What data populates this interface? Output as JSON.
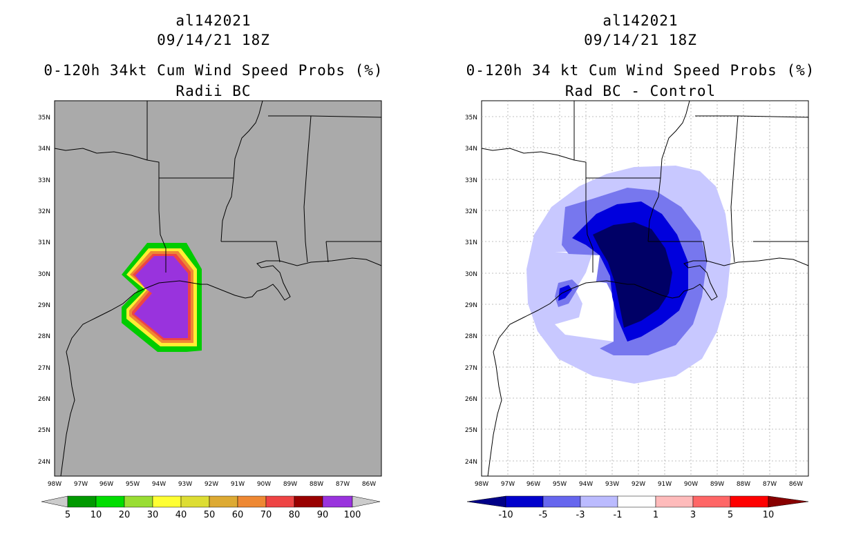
{
  "left_panel": {
    "storm_id": "al142021",
    "datetime": "09/14/21 18Z",
    "title": "0-120h 34kt Cum Wind Speed Probs (%)",
    "subtitle": "Radii BC",
    "background_color": "#aaaaaa",
    "lat_labels": [
      "35N",
      "34N",
      "33N",
      "32N",
      "31N",
      "30N",
      "29N",
      "28N",
      "27N",
      "26N",
      "25N",
      "24N"
    ],
    "lon_labels": [
      "98W",
      "97W",
      "96W",
      "95W",
      "94W",
      "93W",
      "92W",
      "91W",
      "90W",
      "89W",
      "88W",
      "87W",
      "86W"
    ],
    "colorbar": {
      "labels": [
        "5",
        "10",
        "20",
        "30",
        "40",
        "50",
        "60",
        "70",
        "80",
        "90",
        "100"
      ],
      "colors": [
        "#009900",
        "#00dd00",
        "#99dd33",
        "#ffff33",
        "#dddd33",
        "#ddaa33",
        "#ee8833",
        "#ee4444",
        "#990000",
        "#9933dd"
      ],
      "end_colors": [
        "#cccccc",
        "#cccccc"
      ]
    }
  },
  "right_panel": {
    "storm_id": "al142021",
    "datetime": "09/14/21 18Z",
    "title": "0-120h 34 kt Cum Wind Speed Probs (%)",
    "subtitle": "Rad BC - Control",
    "background_color": "#ffffff",
    "lat_labels": [
      "35N",
      "34N",
      "33N",
      "32N",
      "31N",
      "30N",
      "29N",
      "28N",
      "27N",
      "26N",
      "25N",
      "24N"
    ],
    "lon_labels": [
      "98W",
      "97W",
      "96W",
      "95W",
      "94W",
      "93W",
      "92W",
      "91W",
      "90W",
      "89W",
      "88W",
      "87W",
      "86W"
    ],
    "colorbar": {
      "labels": [
        "-10",
        "-5",
        "-3",
        "-1",
        "1",
        "3",
        "5",
        "10"
      ],
      "colors": [
        "#0000cc",
        "#6666ee",
        "#bbbbff",
        "#ffffff",
        "#ffbbbb",
        "#ff6666",
        "#ff0000"
      ],
      "end_colors": [
        "#000088",
        "#880000"
      ]
    }
  }
}
